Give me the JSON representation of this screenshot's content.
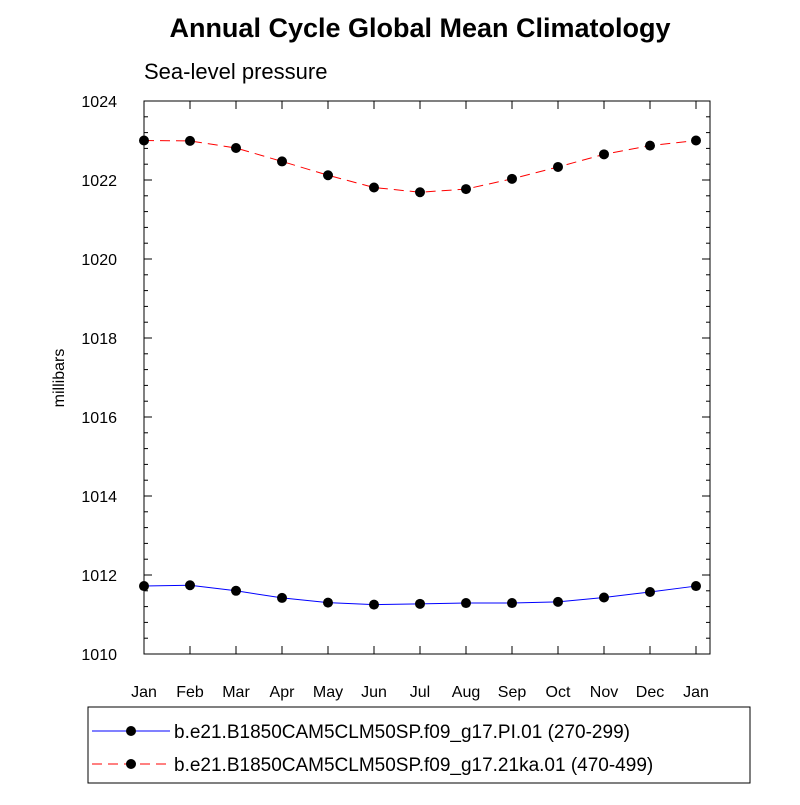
{
  "chart_data": {
    "type": "line",
    "title": "Annual Cycle Global Mean Climatology",
    "subtitle": "Sea-level pressure",
    "xlabel": "",
    "ylabel": "millibars",
    "ylim": [
      1010,
      1024
    ],
    "y_ticks": [
      1010,
      1012,
      1014,
      1016,
      1018,
      1020,
      1022,
      1024
    ],
    "y_minor_step": 0.4,
    "grid": false,
    "legend_position": "bottom",
    "categories": [
      "Jan",
      "Feb",
      "Mar",
      "Apr",
      "May",
      "Jun",
      "Jul",
      "Aug",
      "Sep",
      "Oct",
      "Nov",
      "Dec",
      "Jan"
    ],
    "series": [
      {
        "name": "b.e21.B1850CAM5CLM50SP.f09_g17.PI.01 (270-299)",
        "color": "#0000ff",
        "line_style": "solid",
        "marker": "filled-circle",
        "values": [
          1011.72,
          1011.74,
          1011.6,
          1011.42,
          1011.3,
          1011.25,
          1011.27,
          1011.29,
          1011.29,
          1011.32,
          1011.43,
          1011.57,
          1011.72
        ]
      },
      {
        "name": "b.e21.B1850CAM5CLM50SP.f09_g17.21ka.01 (470-499)",
        "color": "#ff0000",
        "line_style": "dashed",
        "marker": "filled-circle",
        "values": [
          1023.0,
          1022.99,
          1022.81,
          1022.47,
          1022.12,
          1021.81,
          1021.69,
          1021.77,
          1022.03,
          1022.33,
          1022.65,
          1022.87,
          1023.0
        ]
      }
    ]
  }
}
